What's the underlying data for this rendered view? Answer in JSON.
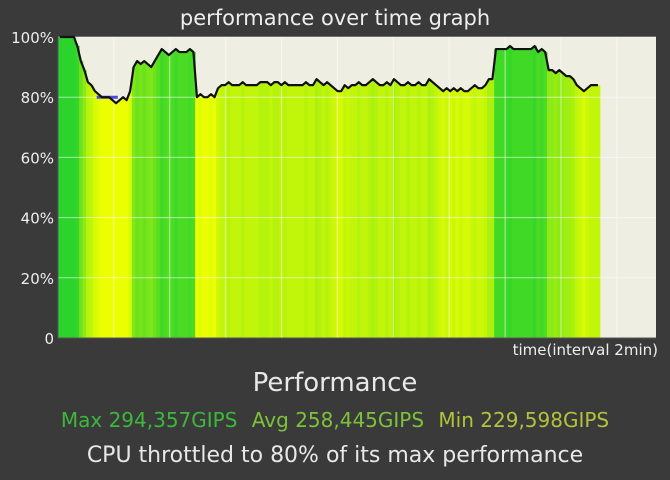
{
  "title": "performance over time graph",
  "chart_data": {
    "type": "area",
    "title": "performance over time graph",
    "xlabel": "time(interval 2min)",
    "ylabel": "",
    "ylim": [
      0,
      100
    ],
    "ytick_labels": [
      "100%",
      "80%",
      "60%",
      "40%",
      "20%",
      "0"
    ],
    "ytick_values": [
      100,
      80,
      60,
      40,
      20,
      0
    ],
    "grid": true,
    "colors": {
      "plot_bg": "#eeeee2",
      "grid": "#ffffff",
      "line": "#111111",
      "dip_marker": "#4a4ae0",
      "high": "#2bd42b",
      "low": "#ecff00"
    },
    "series": [
      {
        "values": [
          100,
          100,
          100,
          100,
          100,
          97,
          92,
          89,
          85,
          84,
          82,
          81,
          80,
          80,
          80,
          79,
          78,
          79,
          80,
          79,
          82,
          90,
          92,
          91,
          92,
          91,
          90,
          92,
          94,
          96,
          95,
          94,
          95,
          96,
          95,
          95,
          95,
          96,
          95,
          80,
          81,
          80,
          80,
          81,
          80,
          83,
          84,
          84,
          85,
          84,
          84,
          84,
          85,
          84,
          84,
          84,
          84,
          85,
          85,
          85,
          84,
          85,
          85,
          84,
          85,
          84,
          84,
          84,
          84,
          84,
          85,
          84,
          84,
          86,
          85,
          84,
          85,
          84,
          83,
          82,
          82,
          84,
          83,
          84,
          84,
          85,
          84,
          84,
          85,
          86,
          85,
          84,
          84,
          85,
          84,
          86,
          85,
          84,
          84,
          85,
          84,
          84,
          85,
          84,
          84,
          86,
          85,
          84,
          83,
          82,
          83,
          82,
          83,
          82,
          83,
          82,
          82,
          83,
          84,
          83,
          83,
          84,
          86,
          86,
          96,
          96,
          96,
          96,
          97,
          96,
          96,
          96,
          96,
          96,
          96,
          97,
          95,
          96,
          95,
          89,
          89,
          88,
          89,
          88,
          87,
          87,
          86,
          84,
          83,
          82,
          83,
          84,
          84,
          84
        ]
      }
    ]
  },
  "xlabel": "time(interval 2min)",
  "performance_heading": "Performance",
  "stats": {
    "max": "Max 294,357GIPS",
    "avg": "Avg 258,445GIPS",
    "min": "Min 229,598GIPS"
  },
  "throttle_note": "CPU throttled to 80% of its max performance"
}
